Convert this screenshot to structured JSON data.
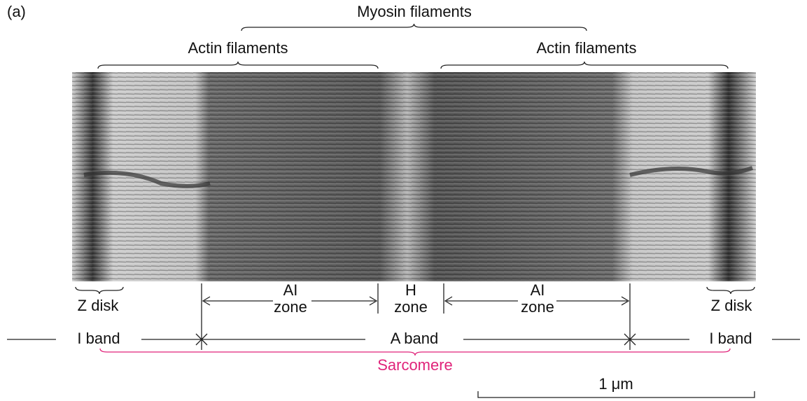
{
  "label": "(a)",
  "top_labels": {
    "myosin": "Myosin filaments",
    "actin_left": "Actin filaments",
    "actin_right": "Actin filaments"
  },
  "zones": [
    {
      "line1": "AI",
      "line2": "zone"
    },
    {
      "line1": "H",
      "line2": "zone"
    },
    {
      "line1": "AI",
      "line2": "zone"
    }
  ],
  "z_disks": [
    "Z disk",
    "Z disk"
  ],
  "bands": [
    "I band",
    "A band",
    "I band"
  ],
  "sarcomere": "Sarcomere",
  "scale_bar": "1 μm"
}
